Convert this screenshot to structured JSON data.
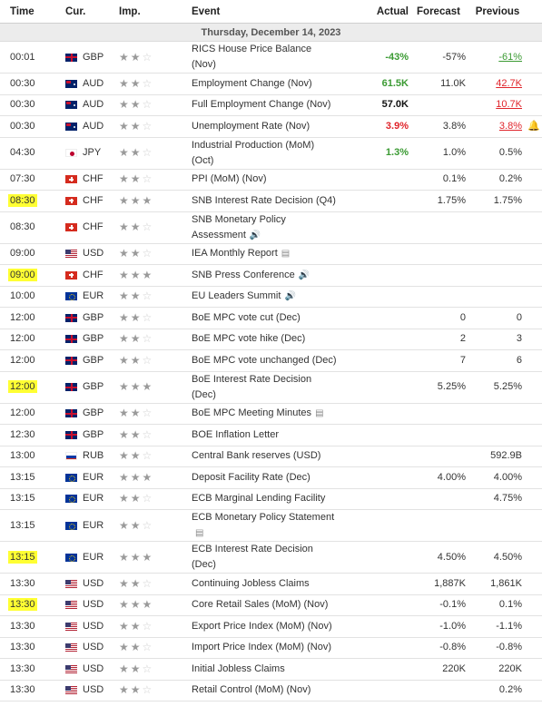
{
  "header": {
    "time": "Time",
    "currency": "Cur.",
    "importance": "Imp.",
    "event": "Event",
    "actual": "Actual",
    "forecast": "Forecast",
    "previous": "Previous"
  },
  "day_label": "Thursday, December 14, 2023",
  "colors": {
    "actual_positive": "#3a9a32",
    "actual_negative": "#e0242b",
    "time_highlight": "#ffff33"
  },
  "events": [
    {
      "time": "00:01",
      "highlight": false,
      "flag": "gb",
      "currency": "GBP",
      "stars": 2,
      "event_lines": [
        "RICS House Price Balance",
        "(Nov)"
      ],
      "icon": "",
      "actual": "-43%",
      "actual_class": "pos",
      "forecast": "-57%",
      "previous": "-61%",
      "prev_class": "prev-pos",
      "alert": false
    },
    {
      "time": "00:30",
      "highlight": false,
      "flag": "au",
      "currency": "AUD",
      "stars": 2,
      "event_lines": [
        "Employment Change (Nov)"
      ],
      "icon": "",
      "actual": "61.5K",
      "actual_class": "pos",
      "forecast": "11.0K",
      "previous": "42.7K",
      "prev_class": "prev-neg",
      "alert": false
    },
    {
      "time": "00:30",
      "highlight": false,
      "flag": "au",
      "currency": "AUD",
      "stars": 2,
      "event_lines": [
        "Full Employment Change (Nov)"
      ],
      "icon": "",
      "actual": "57.0K",
      "actual_class": "neu",
      "forecast": "",
      "previous": "10.7K",
      "prev_class": "prev-neg",
      "alert": false
    },
    {
      "time": "00:30",
      "highlight": false,
      "flag": "au",
      "currency": "AUD",
      "stars": 2,
      "event_lines": [
        "Unemployment Rate (Nov)"
      ],
      "icon": "",
      "actual": "3.9%",
      "actual_class": "neg",
      "forecast": "3.8%",
      "previous": "3.8%",
      "prev_class": "prev-neg",
      "alert": true
    },
    {
      "time": "04:30",
      "highlight": false,
      "flag": "jp",
      "currency": "JPY",
      "stars": 2,
      "event_lines": [
        "Industrial Production (MoM)",
        "(Oct)"
      ],
      "icon": "",
      "actual": "1.3%",
      "actual_class": "pos",
      "forecast": "1.0%",
      "previous": "0.5%",
      "prev_class": "",
      "alert": false
    },
    {
      "time": "07:30",
      "highlight": false,
      "flag": "ch",
      "currency": "CHF",
      "stars": 2,
      "event_lines": [
        "PPI (MoM) (Nov)"
      ],
      "icon": "",
      "actual": "",
      "actual_class": "",
      "forecast": "0.1%",
      "previous": "0.2%",
      "prev_class": "",
      "alert": false
    },
    {
      "time": "08:30",
      "highlight": true,
      "flag": "ch",
      "currency": "CHF",
      "stars": 3,
      "event_lines": [
        "SNB Interest Rate Decision (Q4)"
      ],
      "icon": "",
      "actual": "",
      "actual_class": "",
      "forecast": "1.75%",
      "previous": "1.75%",
      "prev_class": "",
      "alert": false
    },
    {
      "time": "08:30",
      "highlight": false,
      "flag": "ch",
      "currency": "CHF",
      "stars": 2,
      "event_lines": [
        "SNB Monetary Policy",
        "Assessment"
      ],
      "icon": "🔊",
      "actual": "",
      "actual_class": "",
      "forecast": "",
      "previous": "",
      "prev_class": "",
      "alert": false
    },
    {
      "time": "09:00",
      "highlight": false,
      "flag": "us",
      "currency": "USD",
      "stars": 2,
      "event_lines": [
        "IEA Monthly Report"
      ],
      "icon": "▤",
      "actual": "",
      "actual_class": "",
      "forecast": "",
      "previous": "",
      "prev_class": "",
      "alert": false
    },
    {
      "time": "09:00",
      "highlight": true,
      "flag": "ch",
      "currency": "CHF",
      "stars": 3,
      "event_lines": [
        "SNB Press Conference"
      ],
      "icon": "🔊",
      "actual": "",
      "actual_class": "",
      "forecast": "",
      "previous": "",
      "prev_class": "",
      "alert": false
    },
    {
      "time": "10:00",
      "highlight": false,
      "flag": "eu",
      "currency": "EUR",
      "stars": 2,
      "event_lines": [
        "EU Leaders Summit"
      ],
      "icon": "🔊",
      "actual": "",
      "actual_class": "",
      "forecast": "",
      "previous": "",
      "prev_class": "",
      "alert": false
    },
    {
      "time": "12:00",
      "highlight": false,
      "flag": "gb",
      "currency": "GBP",
      "stars": 2,
      "event_lines": [
        "BoE MPC vote cut (Dec)"
      ],
      "icon": "",
      "actual": "",
      "actual_class": "",
      "forecast": "0",
      "previous": "0",
      "prev_class": "",
      "alert": false
    },
    {
      "time": "12:00",
      "highlight": false,
      "flag": "gb",
      "currency": "GBP",
      "stars": 2,
      "event_lines": [
        "BoE MPC vote hike (Dec)"
      ],
      "icon": "",
      "actual": "",
      "actual_class": "",
      "forecast": "2",
      "previous": "3",
      "prev_class": "",
      "alert": false
    },
    {
      "time": "12:00",
      "highlight": false,
      "flag": "gb",
      "currency": "GBP",
      "stars": 2,
      "event_lines": [
        "BoE MPC vote unchanged (Dec)"
      ],
      "icon": "",
      "actual": "",
      "actual_class": "",
      "forecast": "7",
      "previous": "6",
      "prev_class": "",
      "alert": false
    },
    {
      "time": "12:00",
      "highlight": true,
      "flag": "gb",
      "currency": "GBP",
      "stars": 3,
      "event_lines": [
        "BoE Interest Rate Decision",
        "(Dec)"
      ],
      "icon": "",
      "actual": "",
      "actual_class": "",
      "forecast": "5.25%",
      "previous": "5.25%",
      "prev_class": "",
      "alert": false
    },
    {
      "time": "12:00",
      "highlight": false,
      "flag": "gb",
      "currency": "GBP",
      "stars": 2,
      "event_lines": [
        "BoE MPC Meeting Minutes"
      ],
      "icon": "▤",
      "actual": "",
      "actual_class": "",
      "forecast": "",
      "previous": "",
      "prev_class": "",
      "alert": false
    },
    {
      "time": "12:30",
      "highlight": false,
      "flag": "gb",
      "currency": "GBP",
      "stars": 2,
      "event_lines": [
        "BOE Inflation Letter"
      ],
      "icon": "",
      "actual": "",
      "actual_class": "",
      "forecast": "",
      "previous": "",
      "prev_class": "",
      "alert": false
    },
    {
      "time": "13:00",
      "highlight": false,
      "flag": "ru",
      "currency": "RUB",
      "stars": 2,
      "event_lines": [
        "Central Bank reserves (USD)"
      ],
      "icon": "",
      "actual": "",
      "actual_class": "",
      "forecast": "",
      "previous": "592.9B",
      "prev_class": "",
      "alert": false
    },
    {
      "time": "13:15",
      "highlight": false,
      "flag": "eu",
      "currency": "EUR",
      "stars": 3,
      "event_lines": [
        "Deposit Facility Rate (Dec)"
      ],
      "icon": "",
      "actual": "",
      "actual_class": "",
      "forecast": "4.00%",
      "previous": "4.00%",
      "prev_class": "",
      "alert": false
    },
    {
      "time": "13:15",
      "highlight": false,
      "flag": "eu",
      "currency": "EUR",
      "stars": 2,
      "event_lines": [
        "ECB Marginal Lending Facility"
      ],
      "icon": "",
      "actual": "",
      "actual_class": "",
      "forecast": "",
      "previous": "4.75%",
      "prev_class": "",
      "alert": false
    },
    {
      "time": "13:15",
      "highlight": false,
      "flag": "eu",
      "currency": "EUR",
      "stars": 2,
      "event_lines": [
        "ECB Monetary Policy Statement",
        " "
      ],
      "icon": "▤",
      "actual": "",
      "actual_class": "",
      "forecast": "",
      "previous": "",
      "prev_class": "",
      "alert": false
    },
    {
      "time": "13:15",
      "highlight": true,
      "flag": "eu",
      "currency": "EUR",
      "stars": 3,
      "event_lines": [
        "ECB Interest Rate Decision",
        "(Dec)"
      ],
      "icon": "",
      "actual": "",
      "actual_class": "",
      "forecast": "4.50%",
      "previous": "4.50%",
      "prev_class": "",
      "alert": false
    },
    {
      "time": "13:30",
      "highlight": false,
      "flag": "us",
      "currency": "USD",
      "stars": 2,
      "event_lines": [
        "Continuing Jobless Claims"
      ],
      "icon": "",
      "actual": "",
      "actual_class": "",
      "forecast": "1,887K",
      "previous": "1,861K",
      "prev_class": "",
      "alert": false
    },
    {
      "time": "13:30",
      "highlight": true,
      "flag": "us",
      "currency": "USD",
      "stars": 3,
      "event_lines": [
        "Core Retail Sales (MoM) (Nov)"
      ],
      "icon": "",
      "actual": "",
      "actual_class": "",
      "forecast": "-0.1%",
      "previous": "0.1%",
      "prev_class": "",
      "alert": false
    },
    {
      "time": "13:30",
      "highlight": false,
      "flag": "us",
      "currency": "USD",
      "stars": 2,
      "event_lines": [
        "Export Price Index (MoM) (Nov)"
      ],
      "icon": "",
      "actual": "",
      "actual_class": "",
      "forecast": "-1.0%",
      "previous": "-1.1%",
      "prev_class": "",
      "alert": false
    },
    {
      "time": "13:30",
      "highlight": false,
      "flag": "us",
      "currency": "USD",
      "stars": 2,
      "event_lines": [
        "Import Price Index (MoM) (Nov)"
      ],
      "icon": "",
      "actual": "",
      "actual_class": "",
      "forecast": "-0.8%",
      "previous": "-0.8%",
      "prev_class": "",
      "alert": false
    },
    {
      "time": "13:30",
      "highlight": false,
      "flag": "us",
      "currency": "USD",
      "stars": 2,
      "event_lines": [
        "Initial Jobless Claims"
      ],
      "icon": "",
      "actual": "",
      "actual_class": "",
      "forecast": "220K",
      "previous": "220K",
      "prev_class": "",
      "alert": false
    },
    {
      "time": "13:30",
      "highlight": false,
      "flag": "us",
      "currency": "USD",
      "stars": 2,
      "event_lines": [
        "Retail Control (MoM) (Nov)"
      ],
      "icon": "",
      "actual": "",
      "actual_class": "",
      "forecast": "",
      "previous": "0.2%",
      "prev_class": "",
      "alert": false
    }
  ]
}
